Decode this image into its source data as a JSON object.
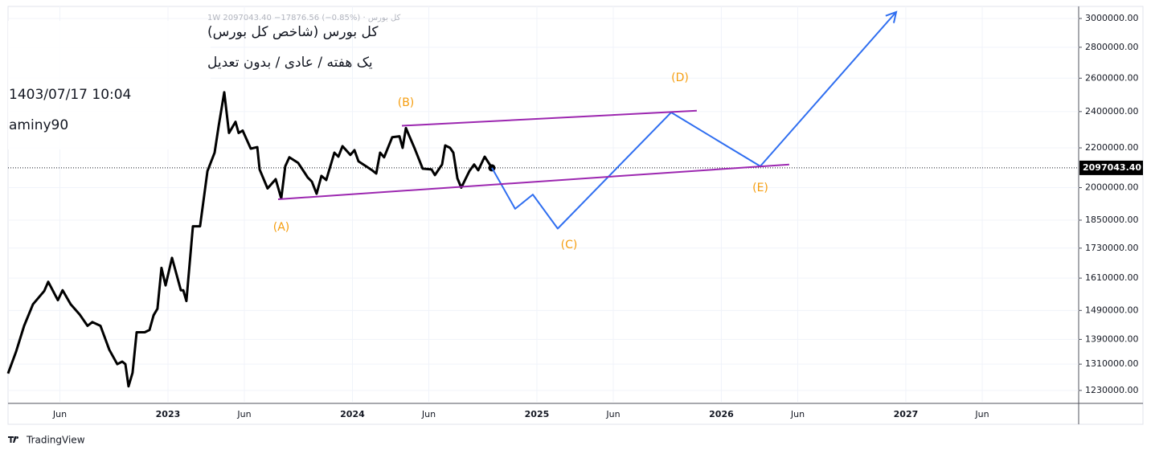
{
  "header": {
    "top_line": "کل بورس · 1W  2097043.40  −17876.56 (−0.85%)",
    "title": "کل بورس (شاخص کل بورس)",
    "subtitle": "یک هفته / عادی / بدون تعدیل",
    "date": "1403/07/17 10:04",
    "author": "aminy90"
  },
  "footer": {
    "brand": "TradingView"
  },
  "chart_data": {
    "type": "line",
    "log_scale": true,
    "grid": true,
    "xlim": [
      2022.133,
      2027.937
    ],
    "ylim": [
      1197000,
      3088000
    ],
    "xticks": [
      {
        "value": 2022.414,
        "label": "Jun"
      },
      2023,
      {
        "value": 2023.414,
        "label": "Jun"
      },
      2024,
      {
        "value": 2024.414,
        "label": "Jun"
      },
      2025,
      {
        "value": 2025.414,
        "label": "Jun"
      },
      2026,
      {
        "value": 2026.414,
        "label": "Jun"
      },
      2027,
      {
        "value": 2027.414,
        "label": "Jun"
      }
    ],
    "yticks": [
      {
        "value": 1230000,
        "label": "1230000.00"
      },
      {
        "value": 1310000,
        "label": "1310000.00"
      },
      {
        "value": 1390000,
        "label": "1390000.00"
      },
      {
        "value": 1490000,
        "label": "1490000.00"
      },
      {
        "value": 1610000,
        "label": "1610000.00"
      },
      {
        "value": 1730000,
        "label": "1730000.00"
      },
      {
        "value": 1850000,
        "label": "1850000.00"
      },
      {
        "value": 2000000,
        "label": "2000000.00"
      },
      {
        "value": 2200000,
        "label": "2200000.00"
      },
      {
        "value": 2400000,
        "label": "2400000.00"
      },
      {
        "value": 2600000,
        "label": "2600000.00"
      },
      {
        "value": 2800000,
        "label": "2800000.00"
      },
      {
        "value": 3000000,
        "label": "3000000.00"
      }
    ],
    "price_line": {
      "value": 2097043.4,
      "label": "2097043.40"
    },
    "series": [
      {
        "color": "#000000",
        "end_marker": true,
        "x": [
          2022.133,
          2022.176,
          2022.22,
          2022.268,
          2022.329,
          2022.351,
          2022.403,
          2022.429,
          2022.473,
          2022.521,
          2022.564,
          2022.59,
          2022.634,
          2022.682,
          2022.725,
          2022.752,
          2022.769,
          2022.786,
          2022.808,
          2022.83,
          2022.874,
          2022.9,
          2022.922,
          2022.943,
          2022.965,
          2022.987,
          2023.022,
          2023.07,
          2023.083,
          2023.1,
          2023.135,
          2023.174,
          2023.214,
          2023.253,
          2023.275,
          2023.305,
          2023.331,
          2023.366,
          2023.383,
          2023.405,
          2023.449,
          2023.484,
          2023.497,
          2023.54,
          2023.584,
          2023.614,
          2023.636,
          2023.658,
          2023.706,
          2023.758,
          2023.78,
          2023.806,
          2023.832,
          2023.858,
          2023.902,
          2023.924,
          2023.946,
          2023.989,
          2024.011,
          2024.033,
          2024.107,
          2024.129,
          2024.15,
          2024.172,
          2024.216,
          2024.255,
          2024.272,
          2024.29,
          2024.338,
          2024.381,
          2024.429,
          2024.447,
          2024.486,
          2024.503,
          2024.529,
          2024.547,
          2024.569,
          2024.59,
          2024.634,
          2024.66,
          2024.682,
          2024.717,
          2024.756
        ],
        "values": [
          1281000,
          1349000,
          1436000,
          1512000,
          1561000,
          1596000,
          1527000,
          1564000,
          1512000,
          1476000,
          1436000,
          1449000,
          1436000,
          1356000,
          1310000,
          1318000,
          1310000,
          1242000,
          1283000,
          1414000,
          1414000,
          1422000,
          1473000,
          1496000,
          1650000,
          1582000,
          1690000,
          1564000,
          1564000,
          1524000,
          1823000,
          1823000,
          2081000,
          2175000,
          2320000,
          2514000,
          2280000,
          2342000,
          2280000,
          2293000,
          2196000,
          2204000,
          2089000,
          1996000,
          2041000,
          1949000,
          2105000,
          2151000,
          2122000,
          2049000,
          2029000,
          1971000,
          2057000,
          2037000,
          2175000,
          2154000,
          2209000,
          2163000,
          2188000,
          2130000,
          2085000,
          2069000,
          2175000,
          2151000,
          2257000,
          2262000,
          2200000,
          2307000,
          2196000,
          2093000,
          2089000,
          2061000,
          2114000,
          2213000,
          2200000,
          2175000,
          2045000,
          2000000,
          2081000,
          2114000,
          2085000,
          2154000,
          2097043.4
        ]
      },
      {
        "color": "#2f6ef0",
        "arrow_end": true,
        "x": [
          2024.756,
          2024.882,
          2024.978,
          2025.113,
          2025.728,
          2026.211,
          2026.948
        ],
        "values": [
          2097043.4,
          1901000,
          1967000,
          1813000,
          2395000,
          2105000,
          3047000
        ]
      },
      {
        "color": "#9c27b0",
        "x": [
          2024.268,
          2025.867
        ],
        "values": [
          2320000,
          2405000
        ]
      },
      {
        "color": "#9c27b0",
        "x": [
          2023.597,
          2026.368
        ],
        "values": [
          1945000,
          2114000
        ]
      }
    ],
    "annotations": [
      "(A)",
      "(B)",
      "(C)",
      "(D)",
      "(E)"
    ],
    "annotation_color": "#f59d0e"
  }
}
